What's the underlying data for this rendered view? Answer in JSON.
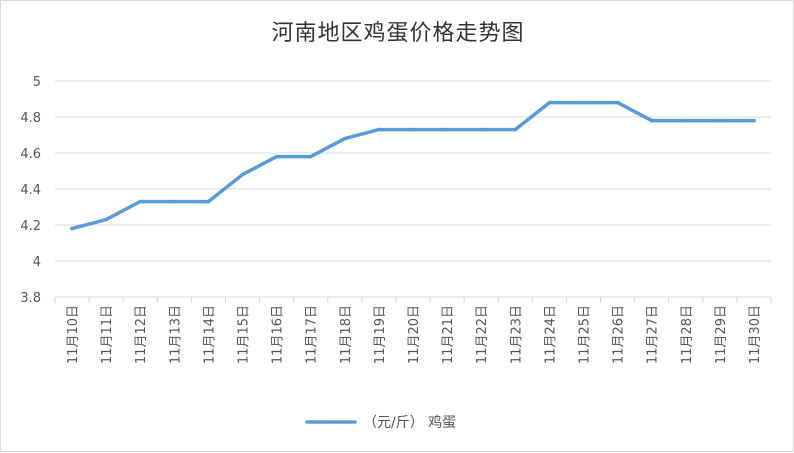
{
  "chart_data": {
    "type": "line",
    "title": "河南地区鸡蛋价格走势图",
    "categories": [
      "11月10日",
      "11月11日",
      "11月12日",
      "11月13日",
      "11月14日",
      "11月15日",
      "11月16日",
      "11月17日",
      "11月18日",
      "11月19日",
      "11月20日",
      "11月21日",
      "11月22日",
      "11月23日",
      "11月24日",
      "11月25日",
      "11月26日",
      "11月27日",
      "11月28日",
      "11月29日",
      "11月30日"
    ],
    "series": [
      {
        "name": "（元/斤） 鸡蛋",
        "values": [
          4.18,
          4.23,
          4.33,
          4.33,
          4.33,
          4.48,
          4.58,
          4.58,
          4.68,
          4.73,
          4.73,
          4.73,
          4.73,
          4.73,
          4.88,
          4.88,
          4.88,
          4.78,
          4.78,
          4.78,
          4.78
        ],
        "color": "#5b9bd5"
      }
    ],
    "ylim": [
      3.8,
      5.0
    ],
    "yticks": [
      3.8,
      4,
      4.2,
      4.4,
      4.6,
      4.8,
      5
    ],
    "ytick_labels": [
      "3.8",
      "4",
      "4.2",
      "4.4",
      "4.6",
      "4.8",
      "5"
    ],
    "grid": true,
    "legend": "bottom",
    "xlabel": "",
    "ylabel": ""
  }
}
